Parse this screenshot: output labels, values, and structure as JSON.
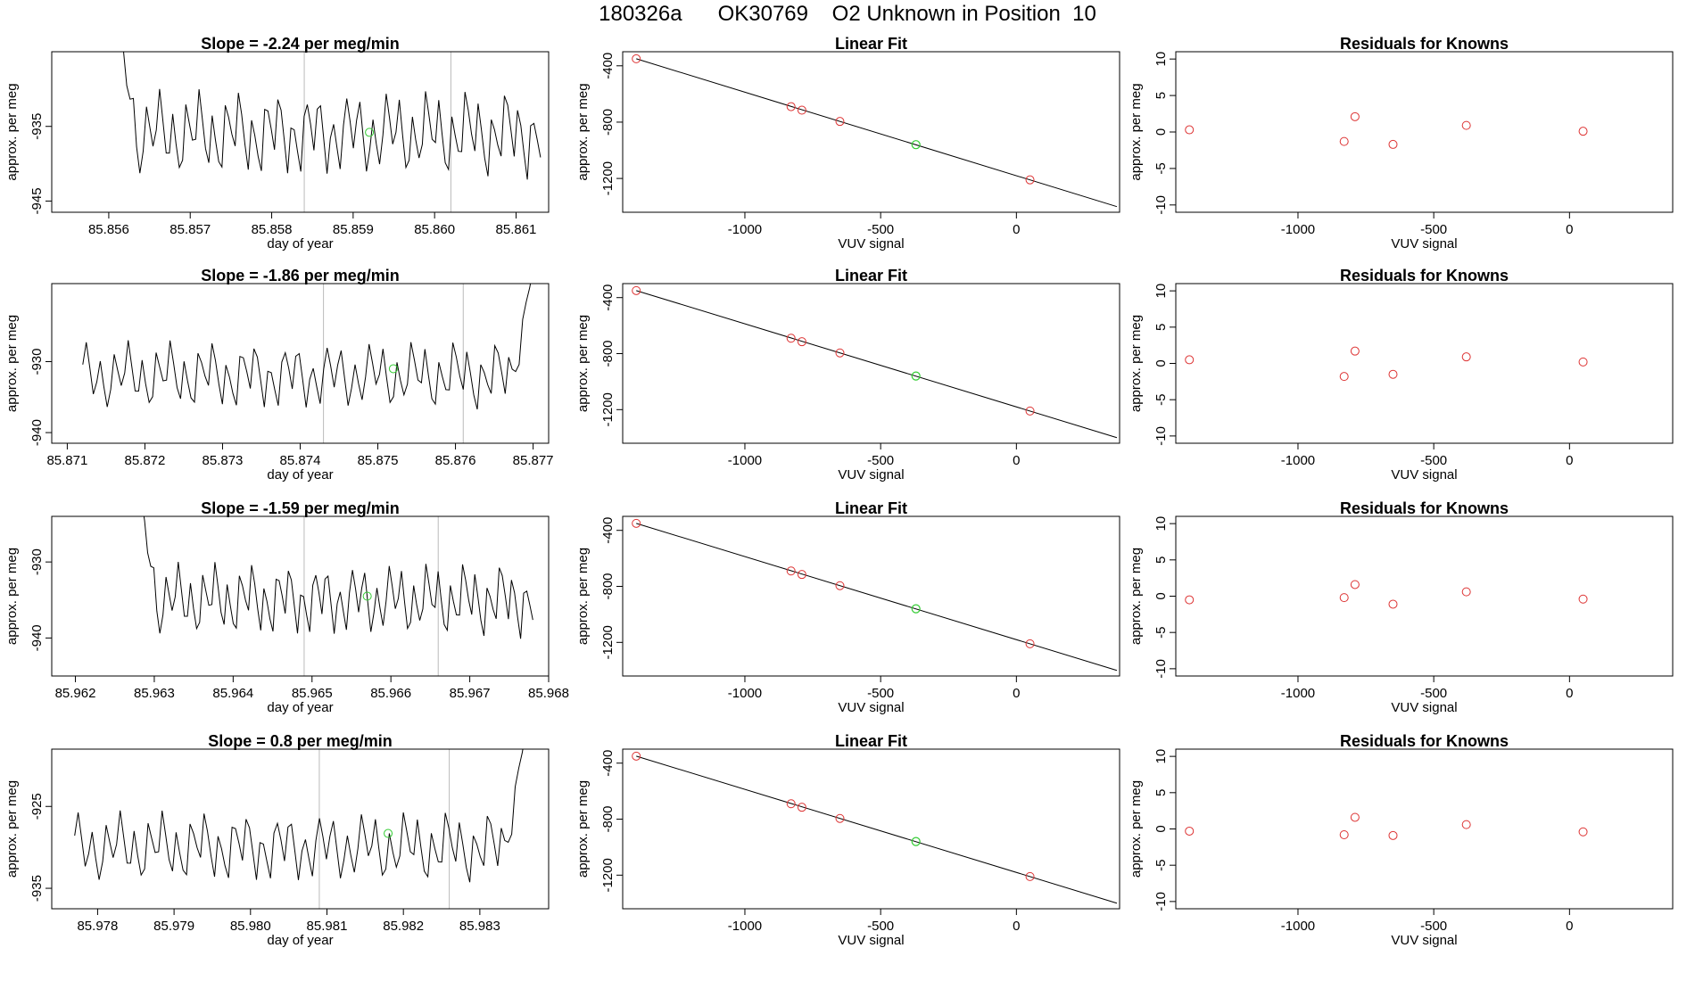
{
  "page": {
    "title": "180326a      OK30769    O2 Unknown in Position  10"
  },
  "colors": {
    "known_point": "#dd3333",
    "unknown_point": "#33cc33",
    "line": "#000000",
    "marker_line": "#bbbbbb"
  },
  "chart_data": [
    {
      "type": "line",
      "row": 1,
      "title": "Slope =  -2.24  per meg/min",
      "xlabel": "day of year",
      "ylabel": "approx. per meg",
      "xlim": [
        85.8553,
        85.8614
      ],
      "ylim": [
        -946.5,
        -925
      ],
      "xticks": [
        "85.856",
        "85.857",
        "85.858",
        "85.859",
        "85.860",
        "85.861"
      ],
      "yticks": [
        "-935",
        "-945"
      ],
      "ytick_values": [
        -935,
        -945
      ],
      "vlines": [
        85.8584,
        85.8602
      ],
      "series": [
        {
          "start": 85.8561,
          "end": 85.8613,
          "base": -936,
          "amp": 6,
          "rise_to": -920,
          "rise_at": "start",
          "values": []
        }
      ],
      "highlight": {
        "x": 85.8592,
        "y": -935.8
      }
    },
    {
      "type": "scatter",
      "row": 1,
      "title": "Linear Fit",
      "xlabel": "VUV signal",
      "ylabel": "approx. per meg",
      "xlim": [
        -1450,
        380
      ],
      "ylim": [
        -1440,
        -300
      ],
      "xticks": [
        "-1000",
        "-500",
        "0"
      ],
      "xtick_values": [
        -1000,
        -500,
        0
      ],
      "yticks": [
        "-400",
        "-800",
        "-1200"
      ],
      "ytick_values": [
        -400,
        -800,
        -1200
      ],
      "fit_line": {
        "x1": -1400,
        "y1": -350,
        "x2": 370,
        "y2": -1400
      },
      "points": [
        {
          "x": -1400,
          "y": -350
        },
        {
          "x": -830,
          "y": -690
        },
        {
          "x": -790,
          "y": -715
        },
        {
          "x": -650,
          "y": -795
        },
        {
          "x": 50,
          "y": -1210
        }
      ],
      "unknown": {
        "x": -370,
        "y": -960
      }
    },
    {
      "type": "scatter",
      "row": 1,
      "title": "Residuals for Knowns",
      "xlabel": "VUV signal",
      "ylabel": "approx. per meg",
      "xlim": [
        -1450,
        380
      ],
      "ylim": [
        -11,
        11
      ],
      "xticks": [
        "-1000",
        "-500",
        "0"
      ],
      "xtick_values": [
        -1000,
        -500,
        0
      ],
      "yticks": [
        "10",
        "5",
        "0",
        "-5",
        "-10"
      ],
      "ytick_values": [
        10,
        5,
        0,
        -5,
        -10
      ],
      "points": [
        {
          "x": -1400,
          "y": 0.3
        },
        {
          "x": -830,
          "y": -1.3
        },
        {
          "x": -790,
          "y": 2.1
        },
        {
          "x": -650,
          "y": -1.7
        },
        {
          "x": -380,
          "y": 0.9
        },
        {
          "x": 50,
          "y": 0.1
        }
      ]
    },
    {
      "type": "line",
      "row": 2,
      "title": "Slope =  -1.86  per meg/min",
      "xlabel": "day of year",
      "ylabel": "approx. per meg",
      "xlim": [
        85.8708,
        85.8772
      ],
      "ylim": [
        -941.5,
        -919
      ],
      "xticks": [
        "85.871",
        "85.872",
        "85.873",
        "85.874",
        "85.875",
        "85.876",
        "85.877"
      ],
      "yticks": [
        "-930",
        "-940"
      ],
      "ytick_values": [
        -930,
        -940
      ],
      "vlines": [
        85.8743,
        85.8761
      ],
      "series": [
        {
          "start": 85.8712,
          "end": 85.877,
          "base": -932,
          "amp": 5,
          "rise_to": -917,
          "rise_at": "end",
          "values": []
        }
      ],
      "highlight": {
        "x": 85.8752,
        "y": -931
      }
    },
    {
      "type": "scatter",
      "row": 2,
      "title": "Linear Fit",
      "xlabel": "VUV signal",
      "ylabel": "approx. per meg",
      "xlim": [
        -1450,
        380
      ],
      "ylim": [
        -1440,
        -300
      ],
      "xticks": [
        "-1000",
        "-500",
        "0"
      ],
      "xtick_values": [
        -1000,
        -500,
        0
      ],
      "yticks": [
        "-400",
        "-800",
        "-1200"
      ],
      "ytick_values": [
        -400,
        -800,
        -1200
      ],
      "fit_line": {
        "x1": -1400,
        "y1": -350,
        "x2": 370,
        "y2": -1400
      },
      "points": [
        {
          "x": -1400,
          "y": -350
        },
        {
          "x": -830,
          "y": -690
        },
        {
          "x": -790,
          "y": -715
        },
        {
          "x": -650,
          "y": -795
        },
        {
          "x": 50,
          "y": -1210
        }
      ],
      "unknown": {
        "x": -370,
        "y": -960
      }
    },
    {
      "type": "scatter",
      "row": 2,
      "title": "Residuals for Knowns",
      "xlabel": "VUV signal",
      "ylabel": "approx. per meg",
      "xlim": [
        -1450,
        380
      ],
      "ylim": [
        -11,
        11
      ],
      "xticks": [
        "-1000",
        "-500",
        "0"
      ],
      "xtick_values": [
        -1000,
        -500,
        0
      ],
      "yticks": [
        "10",
        "5",
        "0",
        "-5",
        "-10"
      ],
      "ytick_values": [
        10,
        5,
        0,
        -5,
        -10
      ],
      "points": [
        {
          "x": -1400,
          "y": 0.5
        },
        {
          "x": -830,
          "y": -1.8
        },
        {
          "x": -790,
          "y": 1.7
        },
        {
          "x": -650,
          "y": -1.5
        },
        {
          "x": -380,
          "y": 0.9
        },
        {
          "x": 50,
          "y": 0.2
        }
      ]
    },
    {
      "type": "line",
      "row": 3,
      "title": "Slope =  -1.59  per meg/min",
      "xlabel": "day of year",
      "ylabel": "approx. per meg",
      "xlim": [
        85.9617,
        85.968
      ],
      "ylim": [
        -945,
        -924
      ],
      "xticks": [
        "85.962",
        "85.963",
        "85.964",
        "85.965",
        "85.966",
        "85.967",
        "85.968"
      ],
      "yticks": [
        "-930",
        "-940"
      ],
      "ytick_values": [
        -930,
        -940
      ],
      "vlines": [
        85.9649,
        85.9666
      ],
      "series": [
        {
          "start": 85.9628,
          "end": 85.9678,
          "base": -935,
          "amp": 5,
          "rise_to": -920,
          "rise_at": "start",
          "values": []
        }
      ],
      "highlight": {
        "x": 85.9657,
        "y": -934.5
      }
    },
    {
      "type": "scatter",
      "row": 3,
      "title": "Linear Fit",
      "xlabel": "VUV signal",
      "ylabel": "approx. per meg",
      "xlim": [
        -1450,
        380
      ],
      "ylim": [
        -1440,
        -300
      ],
      "xticks": [
        "-1000",
        "-500",
        "0"
      ],
      "xtick_values": [
        -1000,
        -500,
        0
      ],
      "yticks": [
        "-400",
        "-800",
        "-1200"
      ],
      "ytick_values": [
        -400,
        -800,
        -1200
      ],
      "fit_line": {
        "x1": -1400,
        "y1": -350,
        "x2": 370,
        "y2": -1400
      },
      "points": [
        {
          "x": -1400,
          "y": -350
        },
        {
          "x": -830,
          "y": -690
        },
        {
          "x": -790,
          "y": -715
        },
        {
          "x": -650,
          "y": -795
        },
        {
          "x": 50,
          "y": -1210
        }
      ],
      "unknown": {
        "x": -370,
        "y": -960
      }
    },
    {
      "type": "scatter",
      "row": 3,
      "title": "Residuals for Knowns",
      "xlabel": "VUV signal",
      "ylabel": "approx. per meg",
      "xlim": [
        -1450,
        380
      ],
      "ylim": [
        -11,
        11
      ],
      "xticks": [
        "-1000",
        "-500",
        "0"
      ],
      "xtick_values": [
        -1000,
        -500,
        0
      ],
      "yticks": [
        "10",
        "5",
        "0",
        "-5",
        "-10"
      ],
      "ytick_values": [
        10,
        5,
        0,
        -5,
        -10
      ],
      "points": [
        {
          "x": -1400,
          "y": -0.5
        },
        {
          "x": -830,
          "y": -0.2
        },
        {
          "x": -790,
          "y": 1.6
        },
        {
          "x": -650,
          "y": -1.1
        },
        {
          "x": -380,
          "y": 0.6
        },
        {
          "x": 50,
          "y": -0.4
        }
      ]
    },
    {
      "type": "line",
      "row": 4,
      "title": "Slope =  0.8  per meg/min",
      "xlabel": "day of year",
      "ylabel": "approx. per meg",
      "xlim": [
        85.9774,
        85.9839
      ],
      "ylim": [
        -937.5,
        -918
      ],
      "xticks": [
        "85.978",
        "85.979",
        "85.980",
        "85.981",
        "85.982",
        "85.983"
      ],
      "yticks": [
        "-925",
        "-935"
      ],
      "ytick_values": [
        -925,
        -935
      ],
      "vlines": [
        85.9809,
        85.9826
      ],
      "series": [
        {
          "start": 85.9777,
          "end": 85.9836,
          "base": -930,
          "amp": 4.5,
          "rise_to": -916,
          "rise_at": "end",
          "values": []
        }
      ],
      "highlight": {
        "x": 85.9818,
        "y": -928.3
      }
    },
    {
      "type": "scatter",
      "row": 4,
      "title": "Linear Fit",
      "xlabel": "VUV signal",
      "ylabel": "approx. per meg",
      "xlim": [
        -1450,
        380
      ],
      "ylim": [
        -1440,
        -300
      ],
      "xticks": [
        "-1000",
        "-500",
        "0"
      ],
      "xtick_values": [
        -1000,
        -500,
        0
      ],
      "yticks": [
        "-400",
        "-800",
        "-1200"
      ],
      "ytick_values": [
        -400,
        -800,
        -1200
      ],
      "fit_line": {
        "x1": -1400,
        "y1": -350,
        "x2": 370,
        "y2": -1400
      },
      "points": [
        {
          "x": -1400,
          "y": -350
        },
        {
          "x": -830,
          "y": -690
        },
        {
          "x": -790,
          "y": -715
        },
        {
          "x": -650,
          "y": -795
        },
        {
          "x": 50,
          "y": -1210
        }
      ],
      "unknown": {
        "x": -370,
        "y": -960
      }
    },
    {
      "type": "scatter",
      "row": 4,
      "title": "Residuals for Knowns",
      "xlabel": "VUV signal",
      "ylabel": "approx. per meg",
      "xlim": [
        -1450,
        380
      ],
      "ylim": [
        -11,
        11
      ],
      "xticks": [
        "-1000",
        "-500",
        "0"
      ],
      "xtick_values": [
        -1000,
        -500,
        0
      ],
      "yticks": [
        "10",
        "5",
        "0",
        "-5",
        "-10"
      ],
      "ytick_values": [
        10,
        5,
        0,
        -5,
        -10
      ],
      "points": [
        {
          "x": -1400,
          "y": -0.3
        },
        {
          "x": -830,
          "y": -0.8
        },
        {
          "x": -790,
          "y": 1.6
        },
        {
          "x": -650,
          "y": -0.9
        },
        {
          "x": -380,
          "y": 0.6
        },
        {
          "x": 50,
          "y": -0.4
        }
      ]
    }
  ]
}
